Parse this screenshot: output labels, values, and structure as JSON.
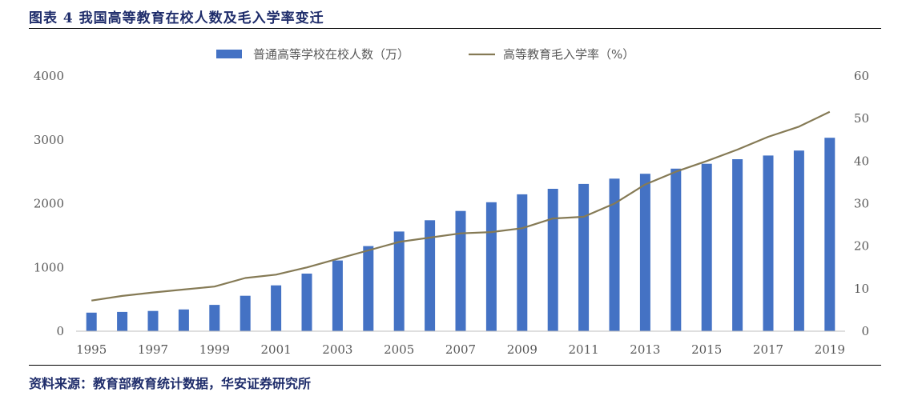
{
  "header": {
    "title": "图表 4   我国高等教育在校人数及毛入学率变迁"
  },
  "footer": {
    "source": "资料来源：教育部教育统计数据，华安证券研究所"
  },
  "colors": {
    "bar": "#4472c4",
    "line": "#857a55",
    "title": "#1f2d6b",
    "axis_text": "#595959"
  },
  "chart_data": {
    "type": "bar+line",
    "title": "",
    "x": [
      1995,
      1996,
      1997,
      1998,
      1999,
      2000,
      2001,
      2002,
      2003,
      2004,
      2005,
      2006,
      2007,
      2008,
      2009,
      2010,
      2011,
      2012,
      2013,
      2014,
      2015,
      2016,
      2017,
      2018,
      2019
    ],
    "x_tick_labels": [
      "1995",
      "1997",
      "1999",
      "2001",
      "2003",
      "2005",
      "2007",
      "2009",
      "2011",
      "2013",
      "2015",
      "2017",
      "2019"
    ],
    "series": [
      {
        "name": "普通高等学校在校人数（万）",
        "kind": "bar",
        "axis": "left",
        "values": [
          291,
          302,
          317,
          341,
          413,
          556,
          719,
          903,
          1109,
          1334,
          1562,
          1739,
          1885,
          2021,
          2145,
          2232,
          2309,
          2391,
          2468,
          2548,
          2625,
          2696,
          2754,
          2831,
          3032
        ]
      },
      {
        "name": "高等教育毛入学率（%）",
        "kind": "line",
        "axis": "right",
        "values": [
          7.2,
          8.3,
          9.1,
          9.8,
          10.5,
          12.5,
          13.3,
          15.0,
          17.0,
          19.0,
          21.0,
          22.0,
          23.0,
          23.3,
          24.2,
          26.5,
          26.9,
          30.0,
          34.5,
          37.5,
          40.0,
          42.7,
          45.7,
          48.1,
          51.6
        ]
      }
    ],
    "y_left": {
      "min": 0,
      "max": 4000,
      "ticks": [
        "0",
        "1000",
        "2000",
        "3000",
        "4000"
      ]
    },
    "y_right": {
      "min": 0,
      "max": 60,
      "ticks": [
        "0",
        "10",
        "20",
        "30",
        "40",
        "50",
        "60"
      ]
    },
    "legend_position": "top-center",
    "grid": false
  }
}
